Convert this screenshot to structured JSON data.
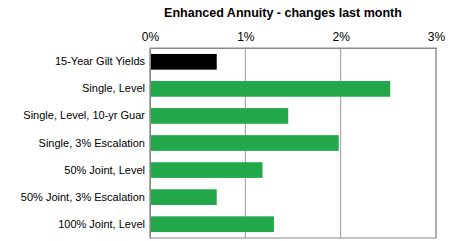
{
  "chart_data": {
    "type": "bar",
    "title": "Enhanced Annuity - changes last month",
    "orientation": "horizontal",
    "categories": [
      "15-Year Gilt Yields",
      "Single, Level",
      "Single, Level, 10-yr Guar",
      "Single, 3% Escalation",
      "50% Joint, Level",
      "50% Joint, 3% Escalation",
      "100% Joint, Level"
    ],
    "values": [
      0.7,
      2.52,
      1.45,
      1.98,
      1.18,
      0.7,
      1.3
    ],
    "colors": [
      "#000000",
      "#22a84a",
      "#22a84a",
      "#22a84a",
      "#22a84a",
      "#22a84a",
      "#22a84a"
    ],
    "xlim": [
      0,
      3
    ],
    "xticks": [
      {
        "value": 0,
        "label": "0%"
      },
      {
        "value": 1,
        "label": "1%"
      },
      {
        "value": 2,
        "label": "2%"
      },
      {
        "value": 3,
        "label": "3%"
      }
    ],
    "grid": true
  }
}
